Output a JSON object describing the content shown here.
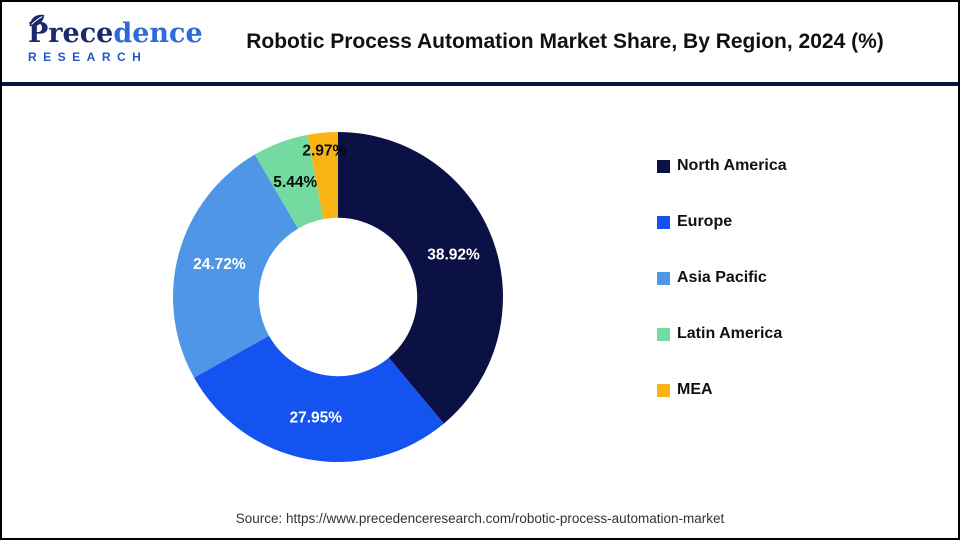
{
  "header": {
    "logo": {
      "word_dark": "Prece",
      "word_light": "dence",
      "sub": "RESEARCH"
    },
    "title": "Robotic Process Automation Market Share, By Region, 2024 (%)"
  },
  "chart_data": {
    "type": "pie",
    "donut": true,
    "hole_ratio": 0.48,
    "start_angle_deg": 0,
    "direction": "clockwise",
    "legend_position": "right",
    "title": "Robotic Process Automation Market Share, By Region, 2024 (%)",
    "categories": [
      "North America",
      "Europe",
      "Asia Pacific",
      "Latin America",
      "MEA"
    ],
    "values": [
      38.92,
      27.95,
      24.72,
      5.44,
      2.97
    ],
    "slices": [
      {
        "name": "North America",
        "value": 38.92,
        "label": "38.92%",
        "color": "#0b1045",
        "label_color": "#ffffff",
        "label_r": 0.745
      },
      {
        "name": "Europe",
        "value": 27.95,
        "label": "27.95%",
        "color": "#1453f0",
        "label_color": "#ffffff",
        "label_r": 0.745
      },
      {
        "name": "Asia Pacific",
        "value": 24.72,
        "label": "24.72%",
        "color": "#4f97e6",
        "label_color": "#ffffff",
        "label_r": 0.745
      },
      {
        "name": "Latin America",
        "value": 5.44,
        "label": "5.44%",
        "color": "#74dba0",
        "label_color": "#0a0a0a",
        "label_r": 0.74
      },
      {
        "name": "MEA",
        "value": 2.97,
        "label": "2.97%",
        "color": "#f9b413",
        "label_color": "#0a0a0a",
        "label_r": 0.89
      }
    ]
  },
  "footer": {
    "source": "Source: https://www.precedenceresearch.com/robotic-process-automation-market"
  },
  "colors": {
    "frame_border": "#000000",
    "header_separator": "#0d1342",
    "background": "#ffffff"
  }
}
